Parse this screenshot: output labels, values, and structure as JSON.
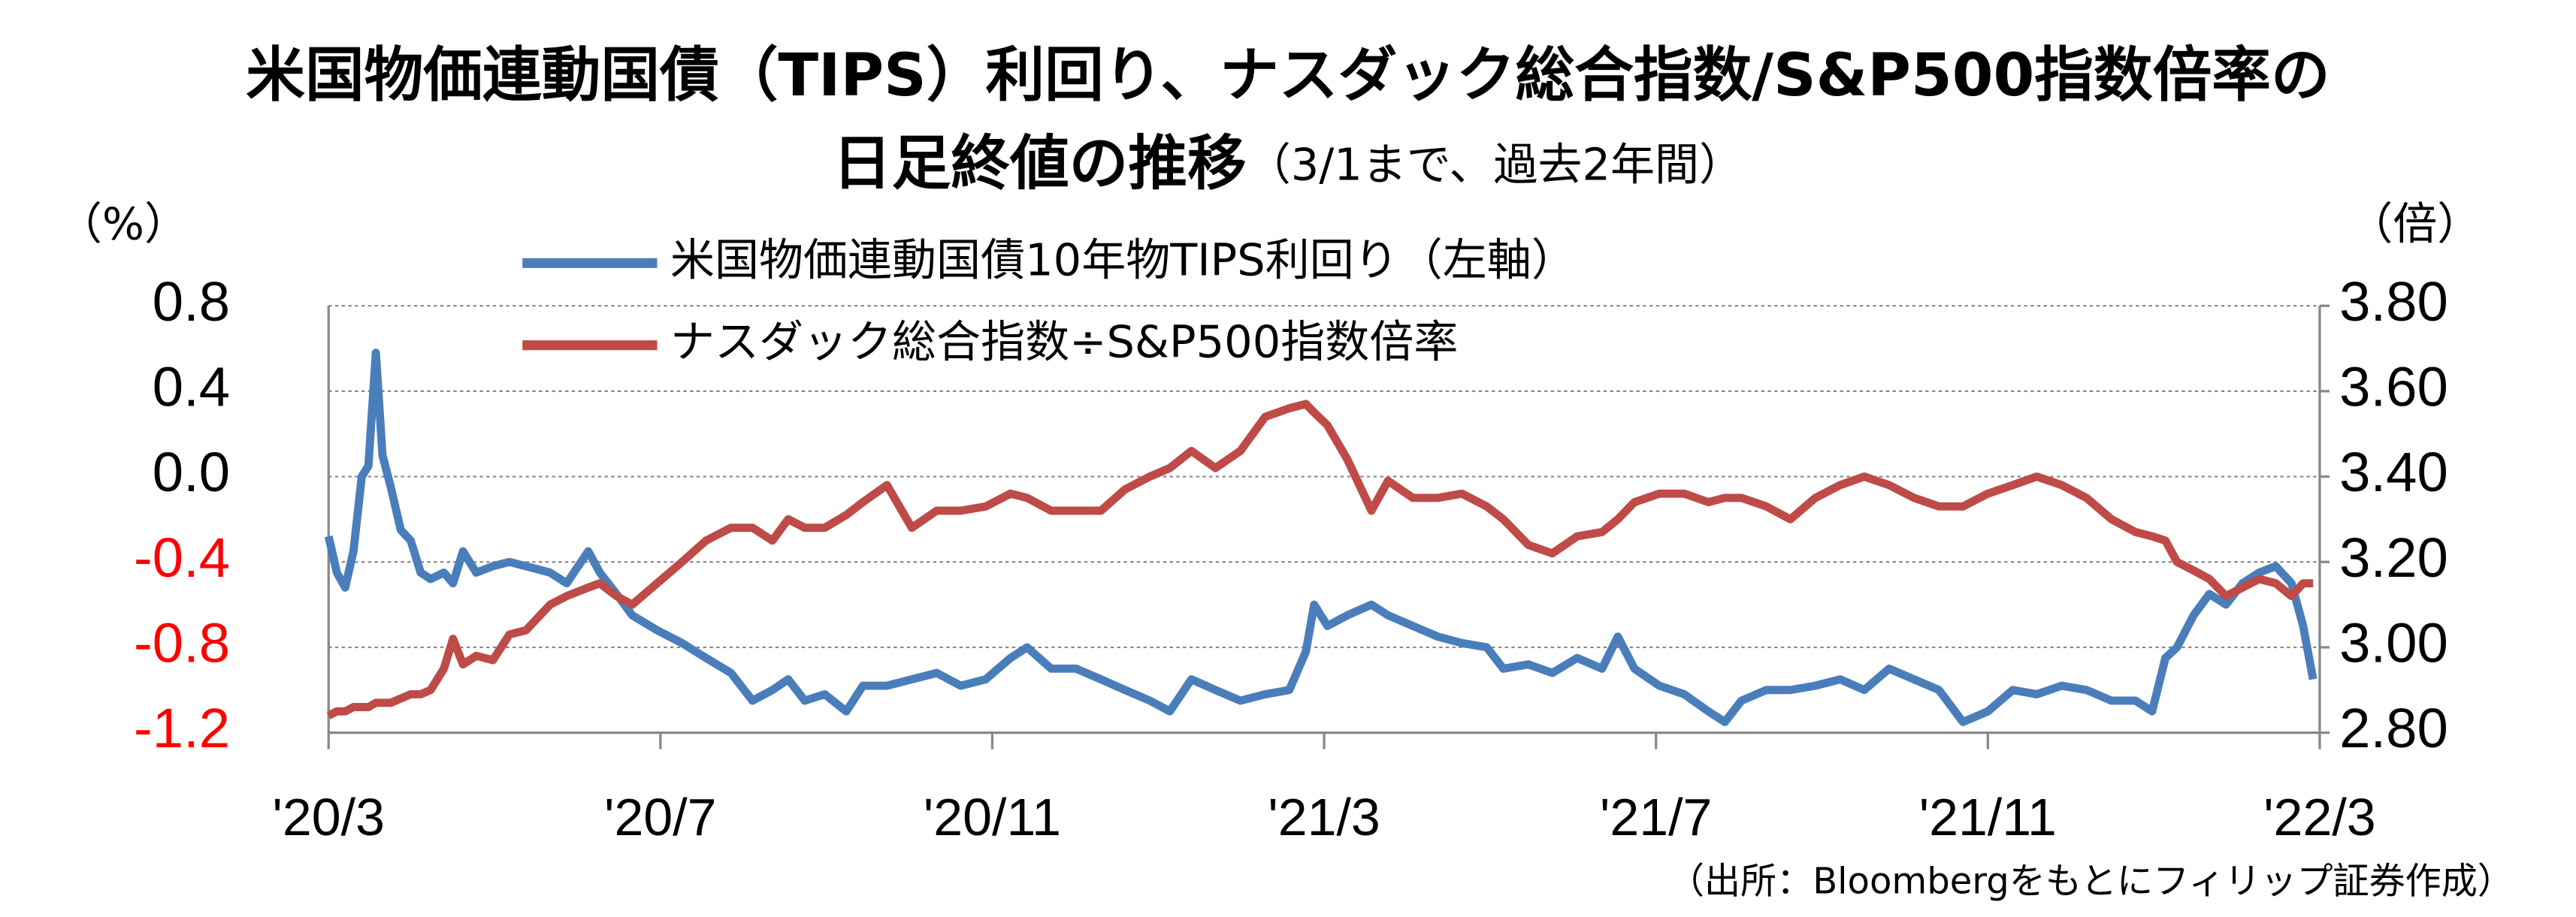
{
  "chart_data": {
    "type": "line",
    "title": [
      "米国物価連動国債（TIPS）利回り、ナスダック総合指数/S&P500指数倍率の",
      "日足終値の推移"
    ],
    "subtitle": "（3/1まで、過去2年間）",
    "y_label": "（%）",
    "y2_label": "（倍）",
    "source": "（出所：Bloombergをもとにフィリップ証券作成）",
    "xlim": [
      0,
      24
    ],
    "xticks": [
      {
        "value": 0,
        "label": "'20/3"
      },
      {
        "value": 4,
        "label": "'20/7"
      },
      {
        "value": 8,
        "label": "'20/11"
      },
      {
        "value": 12,
        "label": "'21/3"
      },
      {
        "value": 16,
        "label": "'21/7"
      },
      {
        "value": 20,
        "label": "'21/11"
      },
      {
        "value": 24,
        "label": "'22/3"
      }
    ],
    "ylim": [
      -1.2,
      0.8
    ],
    "yticks": [
      -1.2,
      -0.8,
      -0.4,
      {
        "value": 0,
        "label": "0.0"
      },
      0.4,
      0.8
    ],
    "negative_tick_color": "#ff0000",
    "y2lim": [
      2.8,
      3.8
    ],
    "y2ticks": [
      {
        "value": 2.8,
        "label": "2.80"
      },
      {
        "value": 3,
        "label": "3.00"
      },
      {
        "value": 3.2,
        "label": "3.20"
      },
      {
        "value": 3.4,
        "label": "3.40"
      },
      {
        "value": 3.6,
        "label": "3.60"
      },
      {
        "value": 3.8,
        "label": "3.80"
      }
    ],
    "grid": true,
    "x": [
      0,
      0.1,
      0.2,
      0.3,
      0.4,
      0.48,
      0.57,
      0.65,
      0.75,
      0.87,
      0.99,
      1.11,
      1.23,
      1.39,
      1.5,
      1.62,
      1.78,
      1.98,
      2.18,
      2.38,
      2.67,
      2.87,
      3.13,
      3.27,
      3.47,
      3.66,
      3.96,
      4.26,
      4.55,
      4.85,
      5.11,
      5.35,
      5.54,
      5.74,
      5.98,
      6.24,
      6.44,
      6.73,
      7.03,
      7.33,
      7.62,
      7.92,
      8.22,
      8.42,
      8.71,
      9.01,
      9.31,
      9.6,
      9.9,
      10.14,
      10.4,
      10.69,
      10.99,
      11.29,
      11.58,
      11.78,
      11.88,
      12.04,
      12.28,
      12.57,
      12.77,
      13.07,
      13.37,
      13.66,
      13.96,
      14.16,
      14.46,
      14.75,
      15.05,
      15.35,
      15.54,
      15.74,
      16.04,
      16.34,
      16.63,
      16.83,
      17.03,
      17.33,
      17.62,
      17.92,
      18.22,
      18.51,
      18.81,
      19.11,
      19.41,
      19.7,
      20.0,
      20.3,
      20.59,
      20.89,
      21.19,
      21.49,
      21.78,
      21.98,
      22.14,
      22.28,
      22.48,
      22.67,
      22.87,
      23.07,
      23.27,
      23.47,
      23.66,
      23.8,
      23.92
    ],
    "series": [
      {
        "name": "米国物価連動国債10年物TIPS利回り（左軸）",
        "color": "#4a7ebb",
        "values": [
          -0.28,
          -0.45,
          -0.52,
          -0.35,
          0.0,
          0.05,
          0.58,
          0.1,
          -0.05,
          -0.25,
          -0.3,
          -0.45,
          -0.48,
          -0.45,
          -0.5,
          -0.35,
          -0.45,
          -0.42,
          -0.4,
          -0.42,
          -0.45,
          -0.5,
          -0.35,
          -0.45,
          -0.55,
          -0.65,
          -0.72,
          -0.78,
          -0.85,
          -0.92,
          -1.05,
          -1.0,
          -0.95,
          -1.05,
          -1.02,
          -1.1,
          -0.98,
          -0.98,
          -0.95,
          -0.92,
          -0.98,
          -0.95,
          -0.85,
          -0.8,
          -0.9,
          -0.9,
          -0.95,
          -1.0,
          -1.05,
          -1.1,
          -0.95,
          -1.0,
          -1.05,
          -1.02,
          -1.0,
          -0.82,
          -0.6,
          -0.7,
          -0.65,
          -0.6,
          -0.65,
          -0.7,
          -0.75,
          -0.78,
          -0.8,
          -0.9,
          -0.88,
          -0.92,
          -0.85,
          -0.9,
          -0.75,
          -0.9,
          -0.98,
          -1.02,
          -1.1,
          -1.15,
          -1.05,
          -1.0,
          -1.0,
          -0.98,
          -0.95,
          -1.0,
          -0.9,
          -0.95,
          -1.0,
          -1.15,
          -1.1,
          -1.0,
          -1.02,
          -0.98,
          -1.0,
          -1.05,
          -1.05,
          -1.1,
          -0.85,
          -0.8,
          -0.65,
          -0.55,
          -0.6,
          -0.5,
          -0.45,
          -0.42,
          -0.5,
          -0.7,
          -0.95
        ]
      },
      {
        "name": "ナスダック総合指数÷S&P500指数倍率",
        "color": "#be4b48",
        "axis": "y2",
        "values": [
          2.84,
          2.85,
          2.85,
          2.86,
          2.86,
          2.86,
          2.87,
          2.87,
          2.87,
          2.88,
          2.89,
          2.89,
          2.9,
          2.95,
          3.02,
          2.96,
          2.98,
          2.97,
          3.03,
          3.04,
          3.1,
          3.12,
          3.14,
          3.15,
          3.12,
          3.1,
          3.15,
          3.2,
          3.25,
          3.28,
          3.28,
          3.25,
          3.3,
          3.28,
          3.28,
          3.31,
          3.34,
          3.38,
          3.28,
          3.32,
          3.32,
          3.33,
          3.36,
          3.35,
          3.32,
          3.32,
          3.32,
          3.37,
          3.4,
          3.42,
          3.46,
          3.42,
          3.46,
          3.54,
          3.56,
          3.57,
          3.55,
          3.52,
          3.44,
          3.32,
          3.39,
          3.35,
          3.35,
          3.36,
          3.33,
          3.3,
          3.24,
          3.22,
          3.26,
          3.27,
          3.3,
          3.34,
          3.36,
          3.36,
          3.34,
          3.35,
          3.35,
          3.33,
          3.3,
          3.35,
          3.38,
          3.4,
          3.38,
          3.35,
          3.33,
          3.33,
          3.36,
          3.38,
          3.4,
          3.38,
          3.35,
          3.3,
          3.27,
          3.26,
          3.25,
          3.2,
          3.18,
          3.16,
          3.12,
          3.14,
          3.16,
          3.15,
          3.12,
          3.15,
          3.15
        ]
      }
    ]
  }
}
